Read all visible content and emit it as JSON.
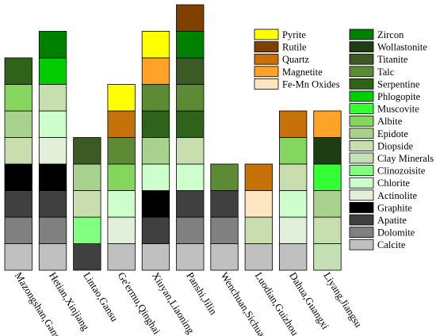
{
  "chart_data": {
    "type": "bar",
    "stacked": true,
    "y_axis_shown": false,
    "categories": [
      "Mazongshan,Gansu",
      "Hetian,Xinjiang",
      "Lintao,Gansu",
      "Ge'ermu,Qinghai",
      "Xiuyan,Liaoning",
      "Panshi,Jilin",
      "Wenchuan,Sichuan",
      "Luodian,Guizhou",
      "Dahua,Guangxi",
      "Liyang,Jiangsu"
    ],
    "minerals": [
      {
        "name": "Calcite",
        "color": "#c0c0c0"
      },
      {
        "name": "Dolomite",
        "color": "#808080"
      },
      {
        "name": "Apatite",
        "color": "#404040"
      },
      {
        "name": "Graphite",
        "color": "#000000"
      },
      {
        "name": "Actinolite",
        "color": "#e2efd9"
      },
      {
        "name": "Chlorite",
        "color": "#ccffcc"
      },
      {
        "name": "Clinozoisite",
        "color": "#80ff80"
      },
      {
        "name": "Clay Minerals",
        "color": "#c5e0b4"
      },
      {
        "name": "Diopside",
        "color": "#c9deaf"
      },
      {
        "name": "Epidote",
        "color": "#a9d18e"
      },
      {
        "name": "Albite",
        "color": "#84d65e"
      },
      {
        "name": "Muscovite",
        "color": "#33ff33"
      },
      {
        "name": "Phlogopite",
        "color": "#00cc00"
      },
      {
        "name": "Serpentine",
        "color": "#2e6319"
      },
      {
        "name": "Talc",
        "color": "#5d8a35"
      },
      {
        "name": "Titanite",
        "color": "#3d5a24"
      },
      {
        "name": "Wollastonite",
        "color": "#1d3d12"
      },
      {
        "name": "Zircon",
        "color": "#008000"
      },
      {
        "name": "Fe-Mn Oxides",
        "color": "#fee6c0"
      },
      {
        "name": "Magnetite",
        "color": "#ffa228"
      },
      {
        "name": "Quartz",
        "color": "#c77208"
      },
      {
        "name": "Rutile",
        "color": "#804000"
      },
      {
        "name": "Pyrite",
        "color": "#ffff00"
      }
    ],
    "stacks": [
      [
        "Calcite",
        "Dolomite",
        "Apatite",
        "Graphite",
        "Diopside",
        "Epidote",
        "Albite",
        "Serpentine"
      ],
      [
        "Calcite",
        "Dolomite",
        "Apatite",
        "Graphite",
        "Actinolite",
        "Chlorite",
        "Diopside",
        "Phlogopite",
        "Zircon"
      ],
      [
        "Apatite",
        "Clinozoisite",
        "Diopside",
        "Epidote",
        "Titanite"
      ],
      [
        "Calcite",
        "Actinolite",
        "Chlorite",
        "Albite",
        "Talc",
        "Quartz",
        "Pyrite"
      ],
      [
        "Calcite",
        "Apatite",
        "Graphite",
        "Chlorite",
        "Epidote",
        "Serpentine",
        "Talc",
        "Magnetite",
        "Pyrite"
      ],
      [
        "Calcite",
        "Dolomite",
        "Apatite",
        "Chlorite",
        "Diopside",
        "Serpentine",
        "Talc",
        "Titanite",
        "Zircon",
        "Rutile"
      ],
      [
        "Calcite",
        "Dolomite",
        "Apatite",
        "Talc"
      ],
      [
        "Calcite",
        "Diopside",
        "Fe-Mn Oxides",
        "Quartz"
      ],
      [
        "Calcite",
        "Actinolite",
        "Chlorite",
        "Diopside",
        "Albite",
        "Quartz"
      ],
      [
        "Clay Minerals",
        "Diopside",
        "Epidote",
        "Muscovite",
        "Wollastonite",
        "Magnetite"
      ]
    ],
    "legend": {
      "placement": "top-right",
      "columns": [
        [
          "Pyrite",
          "Rutile",
          "Quartz",
          "Magnetite",
          "Fe-Mn Oxides"
        ],
        [
          "Zircon",
          "Wollastonite",
          "Titanite",
          "Talc",
          "Serpentine",
          "Phlogopite",
          "Muscovite",
          "Albite",
          "Epidote",
          "Diopside",
          "Clay Minerals",
          "Clinozoisite",
          "Chlorite",
          "Actinolite",
          "Graphite",
          "Apatite",
          "Dolomite",
          "Calcite"
        ]
      ]
    }
  }
}
